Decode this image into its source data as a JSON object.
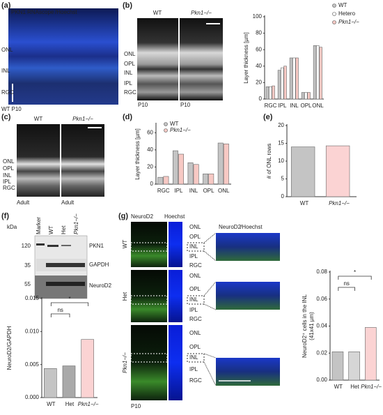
{
  "panels": {
    "a": {
      "label": "(a)",
      "title_green": "PKN1 RNAscope",
      "title_blue": "/Hoechst",
      "layers": [
        "ONL",
        "INL",
        "RGC"
      ],
      "caption": "WT P10"
    },
    "b": {
      "label": "(b)",
      "columns": [
        "WT",
        "Pkn1−/−"
      ],
      "layers": [
        "ONL",
        "OPL",
        "INL",
        "IPL",
        "RGC"
      ],
      "captions": [
        "P10",
        "P10"
      ]
    },
    "c": {
      "label": "(c)",
      "columns": [
        "WT",
        "Pkn1−/−"
      ],
      "layers": [
        "ONL",
        "OPL",
        "INL",
        "IPL",
        "RGC"
      ],
      "captions": [
        "Adult",
        "Adult"
      ]
    },
    "d": {
      "label": "(d)"
    },
    "e": {
      "label": "(e)"
    },
    "f": {
      "label": "(f)",
      "kda": "kDa",
      "lanes": [
        "Marker",
        "WT",
        "Het",
        "Pkn1−/−"
      ],
      "markers": [
        "120",
        "35",
        "55"
      ],
      "proteins": [
        "PKN1",
        "GAPDH",
        "NeuroD2"
      ]
    },
    "g": {
      "label": "(g)",
      "stain_green": "NeuroD2",
      "stain_blue": "Hoechst",
      "rows": [
        "WT",
        "Het",
        "Pkn1−/−"
      ],
      "layers": [
        "ONL",
        "OPL",
        "INL",
        "IPL",
        "RGC"
      ],
      "zoom_green": "NeuroD2",
      "zoom_blue": "/Hoechst",
      "caption": "P10"
    }
  },
  "chart_data": [
    {
      "type": "bar",
      "y_label": "Layer thickness [µm]",
      "categories": [
        "RGC",
        "IPL",
        "INL",
        "OPL",
        "ONL"
      ],
      "series": [
        {
          "name": "WT",
          "color": "#c4c4c4",
          "values": [
            15,
            35,
            50,
            8,
            65
          ]
        },
        {
          "name": "Hetero",
          "color": "#ffffff",
          "values": [
            15,
            38,
            50,
            8,
            65
          ]
        },
        {
          "name": "Pkn1−/−",
          "color": "#f7c9c4",
          "values": [
            16,
            40,
            50,
            8,
            63
          ]
        }
      ],
      "ylim": [
        0,
        100
      ],
      "yticks": [
        0,
        20,
        40,
        60,
        80,
        100
      ]
    },
    {
      "type": "bar",
      "y_label": "Layer thickness [µm]",
      "categories": [
        "RGC",
        "IPL",
        "INL",
        "OPL",
        "ONL"
      ],
      "series": [
        {
          "name": "WT",
          "color": "#c4c4c4",
          "values": [
            8,
            39,
            25,
            12,
            48
          ]
        },
        {
          "name": "Pkn1−/−",
          "color": "#f7c9c4",
          "values": [
            9,
            35,
            23,
            12,
            47
          ]
        }
      ],
      "ylim": [
        0,
        70
      ],
      "yticks": [
        0,
        20,
        40,
        60
      ]
    },
    {
      "type": "bar",
      "y_label": "# of ONL rows",
      "categories": [
        "WT",
        "Pkn1−/−"
      ],
      "values": [
        14,
        14.3
      ],
      "colors": [
        "#c4c4c4",
        "#fbd3d3"
      ],
      "ylim": [
        0,
        20
      ],
      "yticks": [
        0,
        5,
        10,
        15,
        20
      ]
    },
    {
      "type": "bar",
      "y_label": "NeuroD2/GAPDH",
      "categories": [
        "WT",
        "Het",
        "Pkn1−/−"
      ],
      "values": [
        0.0044,
        0.0048,
        0.0088
      ],
      "colors": [
        "#c4c4c4",
        "#a9a9a9",
        "#fbd3d3"
      ],
      "ylim": [
        0,
        0.015
      ],
      "yticks": [
        {
          "value": 0,
          "label": "0.000"
        },
        {
          "value": 0.005,
          "label": "0.005"
        },
        {
          "value": 0.01,
          "label": "0.010"
        },
        {
          "value": 0.015,
          "label": "0.015"
        }
      ],
      "annotations": [
        "ns",
        "*"
      ]
    },
    {
      "type": "bar",
      "y_label": [
        "NeuroD2⁺ cells in the INL",
        "(41x41 µm)"
      ],
      "categories": [
        "WT",
        "Het",
        "Pkn1−/−"
      ],
      "values": [
        0.021,
        0.021,
        0.039
      ],
      "colors": [
        "#c4c4c4",
        "#d6d6d6",
        "#fbd3d3"
      ],
      "ylim": [
        0,
        0.08
      ],
      "yticks": [
        {
          "value": 0,
          "label": "0.00"
        },
        {
          "value": 0.02,
          "label": "0.02"
        },
        {
          "value": 0.04,
          "label": "0.04"
        },
        {
          "value": 0.06,
          "label": "0.06"
        },
        {
          "value": 0.08,
          "label": "0.08"
        }
      ],
      "annotations": [
        "ns",
        "*"
      ]
    }
  ]
}
